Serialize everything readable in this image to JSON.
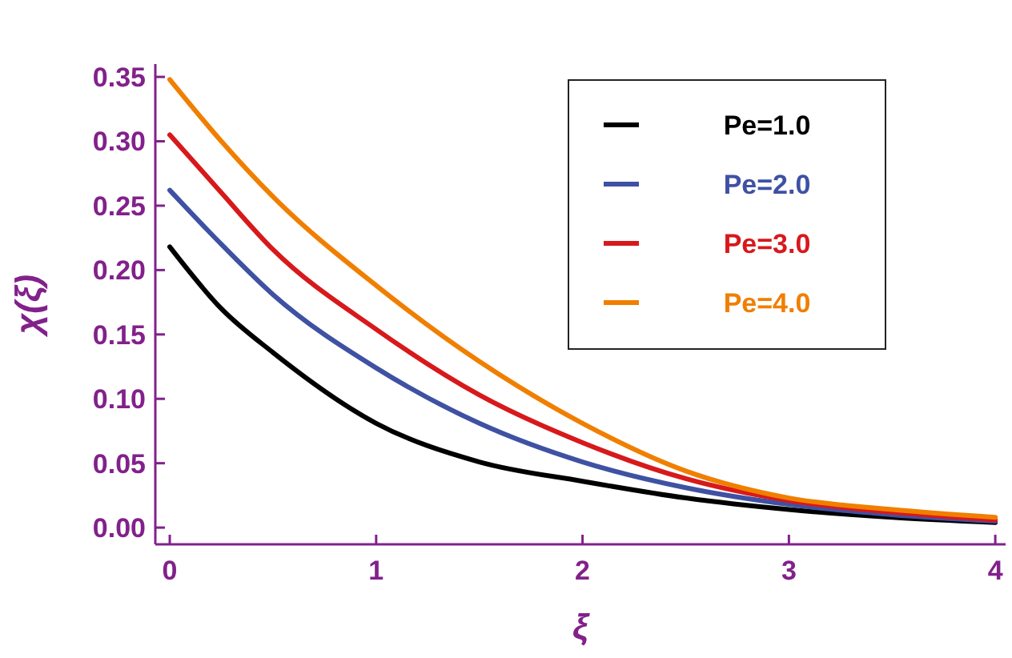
{
  "chart_data": {
    "type": "line",
    "xlabel": "ξ",
    "ylabel": "χ(ξ)",
    "x": [
      0,
      0.25,
      0.5,
      1,
      1.5,
      2,
      2.5,
      3,
      3.5,
      4
    ],
    "series": [
      {
        "name": "Pe=1.0",
        "color": "#000000",
        "values": [
          0.218,
          0.17,
          0.136,
          0.081,
          0.051,
          0.036,
          0.023,
          0.014,
          0.008,
          0.004
        ]
      },
      {
        "name": "Pe=2.0",
        "color": "#3f51a3",
        "values": [
          0.262,
          0.22,
          0.181,
          0.124,
          0.081,
          0.051,
          0.031,
          0.018,
          0.01,
          0.005
        ]
      },
      {
        "name": "Pe=3.0",
        "color": "#d7191c",
        "values": [
          0.305,
          0.26,
          0.216,
          0.154,
          0.103,
          0.066,
          0.038,
          0.021,
          0.012,
          0.006
        ]
      },
      {
        "name": "Pe=4.0",
        "color": "#f07f00",
        "values": [
          0.348,
          0.3,
          0.257,
          0.188,
          0.129,
          0.081,
          0.044,
          0.023,
          0.014,
          0.008
        ]
      }
    ],
    "xlim": [
      -0.07,
      4.05
    ],
    "ylim": [
      -0.013,
      0.36
    ],
    "xticks": [
      0,
      1,
      2,
      3,
      4
    ],
    "yticks": [
      {
        "value": 0,
        "label": "0.00"
      },
      {
        "value": 0.05,
        "label": "0.05"
      },
      {
        "value": 0.1,
        "label": "0.10"
      },
      {
        "value": 0.15,
        "label": "0.15"
      },
      {
        "value": 0.2,
        "label": "0.20"
      },
      {
        "value": 0.25,
        "label": "0.25"
      },
      {
        "value": 0.3,
        "label": "0.30"
      },
      {
        "value": 0.35,
        "label": "0.35"
      }
    ],
    "legend": "top right",
    "grid": false,
    "line_style": "solid",
    "marker": "none"
  }
}
